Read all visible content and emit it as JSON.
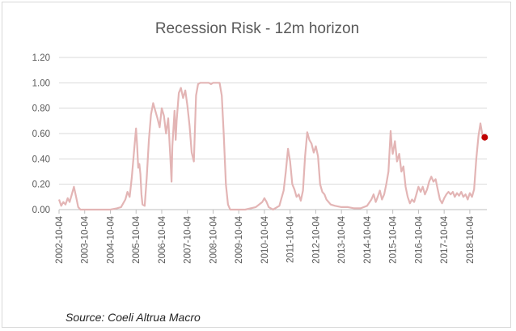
{
  "chart_data": {
    "type": "line",
    "title": "Recession Risk - 12m horizon",
    "source": "Source: Coeli Altrua Macro",
    "ylim": [
      0,
      1.2
    ],
    "yticks": [
      "0.00",
      "0.20",
      "0.40",
      "0.60",
      "0.80",
      "1.00",
      "1.20"
    ],
    "xlim": [
      "2002-10-04",
      "2019-06-04"
    ],
    "xticks": [
      "2002-10-04",
      "2003-10-04",
      "2004-10-04",
      "2005-10-04",
      "2006-10-04",
      "2007-10-04",
      "2008-10-04",
      "2009-10-04",
      "2010-10-04",
      "2011-10-04",
      "2012-10-04",
      "2013-10-04",
      "2014-10-04",
      "2015-10-04",
      "2016-10-04",
      "2017-10-04",
      "2018-10-04"
    ],
    "grid": true,
    "legend": "none",
    "series": [
      {
        "color": "#e3b5b5",
        "points": [
          [
            "2002-10-04",
            0.08
          ],
          [
            "2002-11-04",
            0.03
          ],
          [
            "2002-12-04",
            0.06
          ],
          [
            "2003-01-04",
            0.04
          ],
          [
            "2003-02-04",
            0.09
          ],
          [
            "2003-03-04",
            0.06
          ],
          [
            "2003-04-04",
            0.12
          ],
          [
            "2003-05-04",
            0.18
          ],
          [
            "2003-06-04",
            0.1
          ],
          [
            "2003-07-04",
            0.02
          ],
          [
            "2003-08-04",
            0.0
          ],
          [
            "2004-01-04",
            0.0
          ],
          [
            "2004-06-04",
            0.0
          ],
          [
            "2004-10-04",
            0.0
          ],
          [
            "2005-01-04",
            0.01
          ],
          [
            "2005-03-04",
            0.02
          ],
          [
            "2005-05-04",
            0.08
          ],
          [
            "2005-06-04",
            0.14
          ],
          [
            "2005-07-04",
            0.1
          ],
          [
            "2005-08-04",
            0.25
          ],
          [
            "2005-09-04",
            0.45
          ],
          [
            "2005-10-04",
            0.64
          ],
          [
            "2005-10-20",
            0.5
          ],
          [
            "2005-11-04",
            0.33
          ],
          [
            "2005-11-20",
            0.36
          ],
          [
            "2005-12-04",
            0.28
          ],
          [
            "2005-12-20",
            0.12
          ],
          [
            "2006-01-04",
            0.04
          ],
          [
            "2006-02-04",
            0.03
          ],
          [
            "2006-03-04",
            0.25
          ],
          [
            "2006-04-04",
            0.55
          ],
          [
            "2006-05-04",
            0.75
          ],
          [
            "2006-06-04",
            0.84
          ],
          [
            "2006-07-04",
            0.78
          ],
          [
            "2006-08-04",
            0.72
          ],
          [
            "2006-09-04",
            0.65
          ],
          [
            "2006-10-04",
            0.8
          ],
          [
            "2006-11-04",
            0.74
          ],
          [
            "2006-12-04",
            0.6
          ],
          [
            "2007-01-04",
            0.72
          ],
          [
            "2007-02-04",
            0.4
          ],
          [
            "2007-02-20",
            0.22
          ],
          [
            "2007-03-04",
            0.5
          ],
          [
            "2007-04-04",
            0.78
          ],
          [
            "2007-04-20",
            0.55
          ],
          [
            "2007-05-04",
            0.7
          ],
          [
            "2007-06-04",
            0.92
          ],
          [
            "2007-07-04",
            0.96
          ],
          [
            "2007-08-04",
            0.88
          ],
          [
            "2007-09-04",
            0.94
          ],
          [
            "2007-10-04",
            0.82
          ],
          [
            "2007-11-04",
            0.66
          ],
          [
            "2007-12-04",
            0.45
          ],
          [
            "2008-01-04",
            0.38
          ],
          [
            "2008-02-04",
            0.9
          ],
          [
            "2008-03-04",
            0.99
          ],
          [
            "2008-04-04",
            1.0
          ],
          [
            "2008-06-04",
            1.0
          ],
          [
            "2008-08-04",
            1.0
          ],
          [
            "2008-09-04",
            0.99
          ],
          [
            "2008-10-04",
            1.0
          ],
          [
            "2009-01-04",
            1.0
          ],
          [
            "2009-02-04",
            0.9
          ],
          [
            "2009-03-04",
            0.6
          ],
          [
            "2009-04-04",
            0.2
          ],
          [
            "2009-05-04",
            0.04
          ],
          [
            "2009-06-04",
            0.0
          ],
          [
            "2010-01-04",
            0.0
          ],
          [
            "2010-06-04",
            0.02
          ],
          [
            "2010-09-04",
            0.06
          ],
          [
            "2010-10-04",
            0.09
          ],
          [
            "2010-11-04",
            0.06
          ],
          [
            "2010-12-04",
            0.02
          ],
          [
            "2011-02-04",
            0.0
          ],
          [
            "2011-05-04",
            0.03
          ],
          [
            "2011-07-04",
            0.15
          ],
          [
            "2011-08-04",
            0.3
          ],
          [
            "2011-09-04",
            0.48
          ],
          [
            "2011-10-04",
            0.38
          ],
          [
            "2011-11-04",
            0.2
          ],
          [
            "2011-12-04",
            0.16
          ],
          [
            "2012-01-04",
            0.1
          ],
          [
            "2012-02-04",
            0.12
          ],
          [
            "2012-03-04",
            0.07
          ],
          [
            "2012-04-04",
            0.15
          ],
          [
            "2012-05-04",
            0.42
          ],
          [
            "2012-06-04",
            0.61
          ],
          [
            "2012-07-04",
            0.55
          ],
          [
            "2012-08-04",
            0.52
          ],
          [
            "2012-09-04",
            0.45
          ],
          [
            "2012-10-04",
            0.5
          ],
          [
            "2012-11-04",
            0.42
          ],
          [
            "2012-12-04",
            0.2
          ],
          [
            "2013-01-04",
            0.14
          ],
          [
            "2013-02-04",
            0.12
          ],
          [
            "2013-03-04",
            0.08
          ],
          [
            "2013-05-04",
            0.04
          ],
          [
            "2013-07-04",
            0.03
          ],
          [
            "2013-10-04",
            0.02
          ],
          [
            "2014-01-04",
            0.02
          ],
          [
            "2014-04-04",
            0.01
          ],
          [
            "2014-07-04",
            0.01
          ],
          [
            "2014-10-04",
            0.03
          ],
          [
            "2014-12-04",
            0.08
          ],
          [
            "2015-01-04",
            0.12
          ],
          [
            "2015-02-04",
            0.06
          ],
          [
            "2015-03-04",
            0.1
          ],
          [
            "2015-04-04",
            0.15
          ],
          [
            "2015-05-04",
            0.08
          ],
          [
            "2015-06-04",
            0.12
          ],
          [
            "2015-07-04",
            0.2
          ],
          [
            "2015-08-04",
            0.3
          ],
          [
            "2015-09-04",
            0.62
          ],
          [
            "2015-09-20",
            0.5
          ],
          [
            "2015-10-04",
            0.44
          ],
          [
            "2015-11-04",
            0.54
          ],
          [
            "2015-12-04",
            0.38
          ],
          [
            "2016-01-04",
            0.44
          ],
          [
            "2016-02-04",
            0.3
          ],
          [
            "2016-03-04",
            0.34
          ],
          [
            "2016-04-04",
            0.18
          ],
          [
            "2016-05-04",
            0.1
          ],
          [
            "2016-06-04",
            0.05
          ],
          [
            "2016-07-04",
            0.08
          ],
          [
            "2016-08-04",
            0.06
          ],
          [
            "2016-09-04",
            0.12
          ],
          [
            "2016-10-04",
            0.18
          ],
          [
            "2016-11-04",
            0.14
          ],
          [
            "2016-12-04",
            0.18
          ],
          [
            "2017-01-04",
            0.12
          ],
          [
            "2017-02-04",
            0.16
          ],
          [
            "2017-03-04",
            0.22
          ],
          [
            "2017-04-04",
            0.26
          ],
          [
            "2017-05-04",
            0.22
          ],
          [
            "2017-06-04",
            0.24
          ],
          [
            "2017-07-04",
            0.16
          ],
          [
            "2017-08-04",
            0.08
          ],
          [
            "2017-09-04",
            0.05
          ],
          [
            "2017-10-04",
            0.09
          ],
          [
            "2017-11-04",
            0.12
          ],
          [
            "2017-12-04",
            0.14
          ],
          [
            "2018-01-04",
            0.12
          ],
          [
            "2018-02-04",
            0.14
          ],
          [
            "2018-03-04",
            0.1
          ],
          [
            "2018-04-04",
            0.13
          ],
          [
            "2018-05-04",
            0.11
          ],
          [
            "2018-06-04",
            0.14
          ],
          [
            "2018-07-04",
            0.1
          ],
          [
            "2018-08-04",
            0.12
          ],
          [
            "2018-09-04",
            0.08
          ],
          [
            "2018-10-04",
            0.13
          ],
          [
            "2018-11-04",
            0.1
          ],
          [
            "2018-12-04",
            0.16
          ],
          [
            "2019-01-04",
            0.4
          ],
          [
            "2019-02-04",
            0.58
          ],
          [
            "2019-03-04",
            0.68
          ],
          [
            "2019-04-04",
            0.58
          ],
          [
            "2019-05-04",
            0.57
          ]
        ]
      }
    ],
    "highlight": {
      "x": "2019-05-04",
      "y": 0.57,
      "color": "#c00000"
    }
  }
}
